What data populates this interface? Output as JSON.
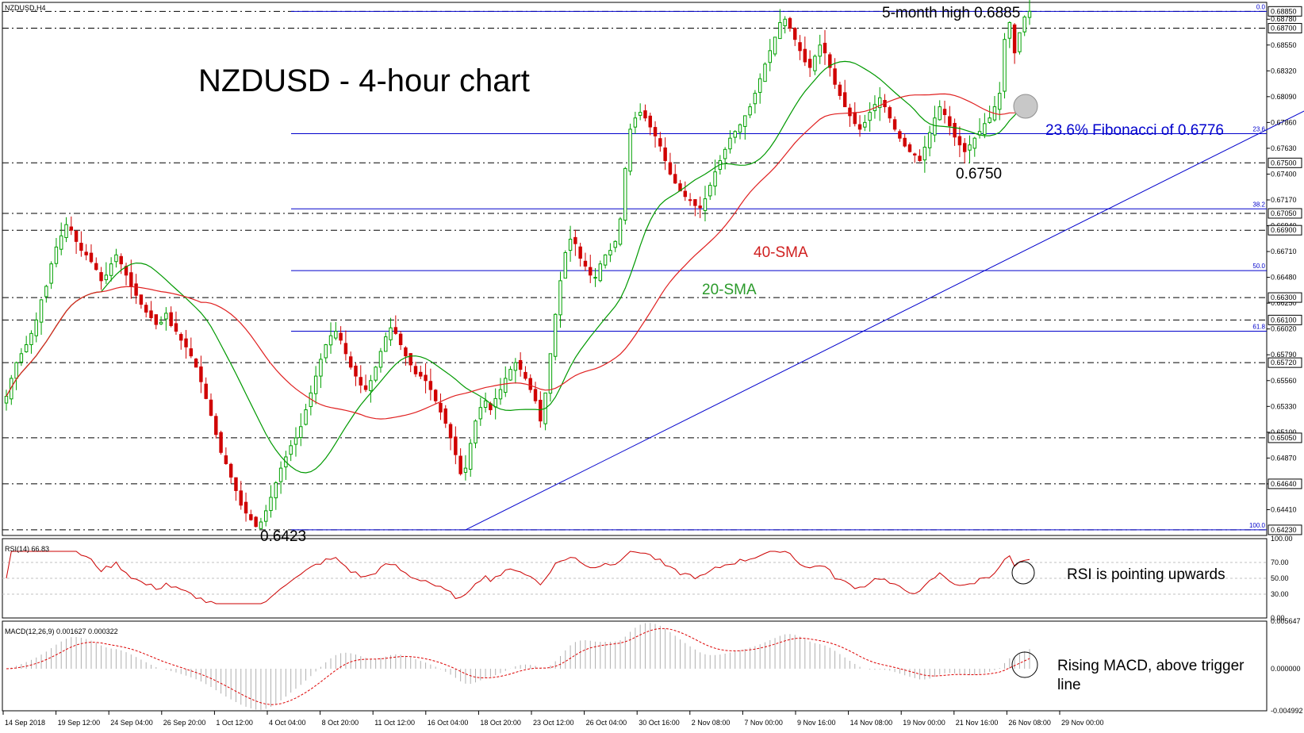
{
  "chart_data": {
    "type": "candlestick",
    "symbol_header": "NZDUSD,H4",
    "title": "NZDUSD - 4-hour chart",
    "x_tick_labels": [
      "14 Sep 2018",
      "19 Sep 12:00",
      "24 Sep 04:00",
      "26 Sep 20:00",
      "1 Oct 12:00",
      "4 Oct 04:00",
      "8 Oct 20:00",
      "11 Oct 12:00",
      "16 Oct 04:00",
      "18 Oct 20:00",
      "23 Oct 12:00",
      "26 Oct 04:00",
      "30 Oct 16:00",
      "2 Nov 08:00",
      "7 Nov 00:00",
      "9 Nov 16:00",
      "14 Nov 08:00",
      "19 Nov 00:00",
      "21 Nov 16:00",
      "26 Nov 08:00",
      "29 Nov 00:00"
    ],
    "price_axis": {
      "range": [
        0.6418,
        0.6893
      ],
      "tick_labels": [
        "0.68780",
        "0.68550",
        "0.68320",
        "0.68090",
        "0.67860",
        "0.67630",
        "0.67400",
        "0.67170",
        "0.66940",
        "0.66710",
        "0.66480",
        "0.66250",
        "0.66020",
        "0.65790",
        "0.65560",
        "0.65330",
        "0.65100",
        "0.64870",
        "0.64640",
        "0.64410"
      ],
      "boxed_labels": [
        "0.68850",
        "0.68700",
        "0.67500",
        "0.67050",
        "0.66900",
        "0.66300",
        "0.66100",
        "0.65720",
        "0.65050",
        "0.64640",
        "0.64230"
      ]
    },
    "horizontal_levels": [
      {
        "price": 0.6885,
        "style": "dashdot",
        "color": "#000000"
      },
      {
        "price": 0.687,
        "style": "dashdot",
        "color": "#000000"
      },
      {
        "price": 0.675,
        "style": "dashdot",
        "color": "#000000"
      },
      {
        "price": 0.6705,
        "style": "dashdot",
        "color": "#000000"
      },
      {
        "price": 0.669,
        "style": "dashdot",
        "color": "#000000"
      },
      {
        "price": 0.663,
        "style": "dashdot",
        "color": "#000000"
      },
      {
        "price": 0.661,
        "style": "dashdot",
        "color": "#000000"
      },
      {
        "price": 0.6572,
        "style": "dashdot",
        "color": "#000000"
      },
      {
        "price": 0.6505,
        "style": "dashdot",
        "color": "#000000"
      },
      {
        "price": 0.6464,
        "style": "dashdot",
        "color": "#000000"
      },
      {
        "price": 0.6423,
        "style": "dashdot",
        "color": "#000000"
      }
    ],
    "fibonacci": {
      "color": "#0000cc",
      "levels": [
        {
          "label": "0.0",
          "price": 0.6885
        },
        {
          "label": "23.6",
          "price": 0.6776
        },
        {
          "label": "38.2",
          "price": 0.6709
        },
        {
          "label": "50.0",
          "price": 0.6654
        },
        {
          "label": "61.8",
          "price": 0.66
        },
        {
          "label": "100.0",
          "price": 0.6423
        }
      ]
    },
    "trendline": {
      "color": "#0000cc",
      "points": [
        {
          "bar": 92,
          "price": 0.6423
        },
        {
          "bar": 300,
          "price": 0.6885
        }
      ]
    },
    "annotations": [
      "5-month high 0.6885",
      "23.6% Fibonacci of 0.6776",
      "0.6750",
      "40-SMA",
      "20-SMA",
      "0.6423"
    ],
    "candles_close_path": [
      0.6542,
      0.6558,
      0.6572,
      0.658,
      0.6588,
      0.6598,
      0.661,
      0.6628,
      0.664,
      0.666,
      0.6675,
      0.6685,
      0.6695,
      0.669,
      0.668,
      0.6672,
      0.6668,
      0.6662,
      0.6655,
      0.6645,
      0.665,
      0.666,
      0.6668,
      0.666,
      0.665,
      0.664,
      0.6632,
      0.6624,
      0.6617,
      0.6612,
      0.6606,
      0.6608,
      0.6616,
      0.6605,
      0.66,
      0.6592,
      0.6586,
      0.6578,
      0.6568,
      0.6555,
      0.654,
      0.6525,
      0.6508,
      0.6492,
      0.6482,
      0.647,
      0.6458,
      0.6445,
      0.6438,
      0.6432,
      0.6426,
      0.643,
      0.644,
      0.6452,
      0.6465,
      0.6478,
      0.6488,
      0.6498,
      0.6505,
      0.6515,
      0.653,
      0.6545,
      0.656,
      0.6575,
      0.6588,
      0.6596,
      0.66,
      0.6592,
      0.658,
      0.6568,
      0.656,
      0.6552,
      0.6548,
      0.6556,
      0.6568,
      0.6582,
      0.6595,
      0.6603,
      0.6598,
      0.6588,
      0.6578,
      0.657,
      0.6562,
      0.656,
      0.6556,
      0.6548,
      0.6538,
      0.6528,
      0.6518,
      0.6505,
      0.649,
      0.6473,
      0.6478,
      0.65,
      0.652,
      0.6532,
      0.6538,
      0.653,
      0.654,
      0.6548,
      0.6558,
      0.6566,
      0.6572,
      0.6566,
      0.6558,
      0.6548,
      0.6538,
      0.652,
      0.6545,
      0.658,
      0.6615,
      0.6645,
      0.667,
      0.6682,
      0.6678,
      0.6665,
      0.6658,
      0.665,
      0.6648,
      0.666,
      0.6668,
      0.6672,
      0.668,
      0.67,
      0.6745,
      0.678,
      0.679,
      0.6795,
      0.679,
      0.6782,
      0.6774,
      0.6765,
      0.6752,
      0.674,
      0.6732,
      0.6725,
      0.672,
      0.6717,
      0.6712,
      0.671,
      0.6718,
      0.673,
      0.6742,
      0.6752,
      0.6762,
      0.6772,
      0.6778,
      0.6784,
      0.6792,
      0.68,
      0.6812,
      0.6825,
      0.6838,
      0.685,
      0.6862,
      0.6875,
      0.6878,
      0.687,
      0.686,
      0.685,
      0.684,
      0.6835,
      0.6845,
      0.6855,
      0.6848,
      0.6835,
      0.682,
      0.681,
      0.68,
      0.6792,
      0.6785,
      0.678,
      0.6786,
      0.6795,
      0.6802,
      0.6808,
      0.68,
      0.679,
      0.678,
      0.6772,
      0.6765,
      0.676,
      0.6757,
      0.6752,
      0.6764,
      0.6777,
      0.679,
      0.68,
      0.6793,
      0.6783,
      0.6773,
      0.6766,
      0.676,
      0.6766,
      0.6772,
      0.6778,
      0.6785,
      0.679,
      0.68,
      0.6812,
      0.686,
      0.6875,
      0.6848,
      0.6866,
      0.688,
      0.6885
    ]
  },
  "indicators": {
    "rsi": {
      "header": "RSI(14) 66.83",
      "axis_labels": [
        "100.00",
        "70.00",
        "50.00",
        "30.00",
        "0.00"
      ],
      "annotation": "RSI is pointing upwards"
    },
    "macd": {
      "header": "MACD(12,26,9) 0.001627 0.000322",
      "axis_labels": [
        "0.005647",
        "0.000000",
        "-0.004992"
      ],
      "annotation_line1": "Rising MACD, above trigger",
      "annotation_line2": "line"
    }
  },
  "colors": {
    "bull": "#00a000",
    "bear": "#d00000",
    "sma20": "#009900",
    "sma40": "#e02020",
    "fib": "#0000cc",
    "rsi": "#cc0000",
    "macd_signal": "#dd0000",
    "macd_hist": "#b0b0b0",
    "sma20_label": "#2a9a2a",
    "sma40_label": "#d02020"
  }
}
